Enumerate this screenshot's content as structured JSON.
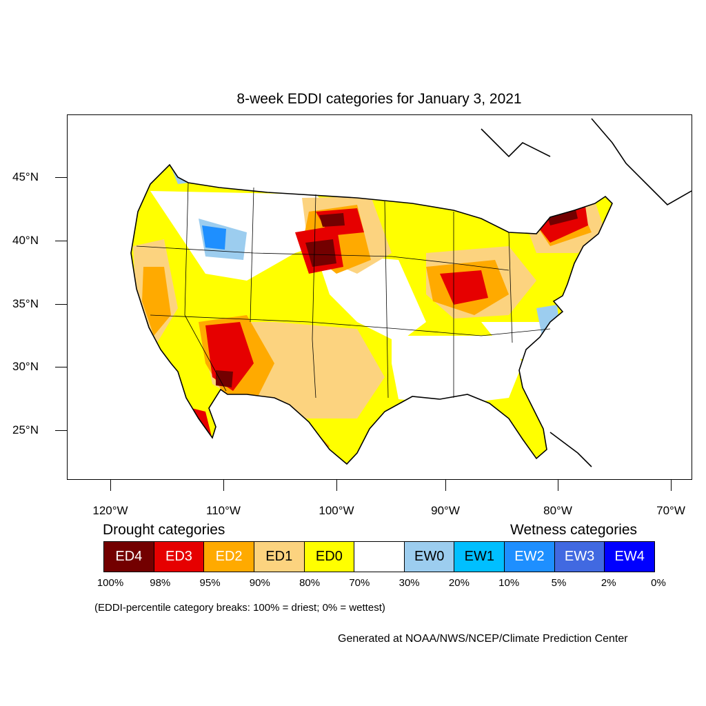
{
  "title": "8-week EDDI categories for January 3, 2021",
  "lat_labels": [
    "45°N",
    "40°N",
    "35°N",
    "30°N",
    "25°N"
  ],
  "lon_labels": [
    "120°W",
    "110°W",
    "100°W",
    "90°W",
    "80°W",
    "70°W"
  ],
  "legend": {
    "drought_heading": "Drought categories",
    "wetness_heading": "Wetness categories",
    "categories": [
      {
        "label": "ED4",
        "color": "#730000",
        "text_color": "#ffffff"
      },
      {
        "label": "ED3",
        "color": "#e60000",
        "text_color": "#ffffff"
      },
      {
        "label": "ED2",
        "color": "#ffaa00",
        "text_color": "#ffffff"
      },
      {
        "label": "ED1",
        "color": "#fcd37f",
        "text_color": "#000000"
      },
      {
        "label": "ED0",
        "color": "#ffff00",
        "text_color": "#000000"
      },
      {
        "label": "",
        "color": "#ffffff",
        "text_color": "#000000"
      },
      {
        "label": "EW0",
        "color": "#9ccdef",
        "text_color": "#000000"
      },
      {
        "label": "EW1",
        "color": "#00bfff",
        "text_color": "#000000"
      },
      {
        "label": "EW2",
        "color": "#1e8fff",
        "text_color": "#ffffff"
      },
      {
        "label": "EW3",
        "color": "#4169e1",
        "text_color": "#ffffff"
      },
      {
        "label": "EW4",
        "color": "#0000ff",
        "text_color": "#ffffff"
      }
    ],
    "breaks": [
      "100%",
      "98%",
      "95%",
      "90%",
      "80%",
      "70%",
      "30%",
      "20%",
      "10%",
      "5%",
      "2%",
      "0%"
    ]
  },
  "note": "(EDDI-percentile category breaks: 100% = driest; 0% = wettest)",
  "credit": "Generated at NOAA/NWS/NCEP/Climate Prediction Center"
}
